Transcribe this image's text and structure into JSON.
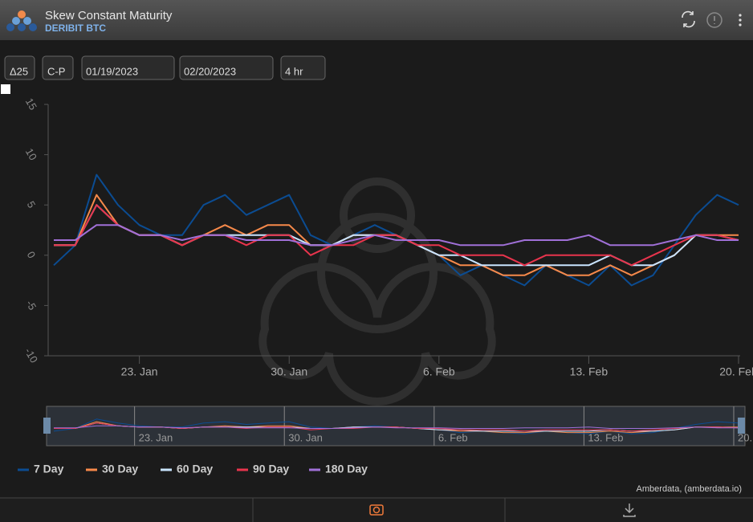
{
  "header": {
    "title": "Skew Constant Maturity",
    "exchange": "DERIBIT",
    "asset": "BTC"
  },
  "controls": {
    "delta": "Δ25",
    "mode": "C-P",
    "start": "01/19/2023",
    "end": "02/20/2023",
    "interval": "4 hr"
  },
  "credit": "Amberdata, (amberdata.io)",
  "chart_data": {
    "type": "line",
    "x": [
      "01/19/2023",
      "01/20/2023",
      "01/21/2023",
      "01/22/2023",
      "01/23/2023",
      "01/24/2023",
      "01/25/2023",
      "01/26/2023",
      "01/27/2023",
      "01/28/2023",
      "01/29/2023",
      "01/30/2023",
      "01/31/2023",
      "02/01/2023",
      "02/02/2023",
      "02/03/2023",
      "02/04/2023",
      "02/05/2023",
      "02/06/2023",
      "02/07/2023",
      "02/08/2023",
      "02/09/2023",
      "02/10/2023",
      "02/11/2023",
      "02/12/2023",
      "02/13/2023",
      "02/14/2023",
      "02/15/2023",
      "02/16/2023",
      "02/17/2023",
      "02/18/2023",
      "02/19/2023",
      "02/20/2023"
    ],
    "series": [
      {
        "name": "7 Day",
        "color": "#0b4c92",
        "values": [
          -1,
          1,
          8,
          5,
          3,
          2,
          2,
          5,
          6,
          4,
          5,
          6,
          2,
          1,
          2,
          3,
          2,
          1,
          0,
          -2,
          -1,
          -2,
          -3,
          -1,
          -2,
          -3,
          -1,
          -3,
          -2,
          1,
          4,
          6,
          5
        ]
      },
      {
        "name": "30 Day",
        "color": "#f7894a",
        "values": [
          1,
          1,
          6,
          3,
          2,
          2,
          1,
          2,
          3,
          2,
          3,
          3,
          1,
          1,
          2,
          2,
          2,
          1,
          0,
          -1,
          -1,
          -2,
          -2,
          -1,
          -2,
          -2,
          -1,
          -2,
          -1,
          0,
          2,
          2,
          2
        ]
      },
      {
        "name": "60 Day",
        "color": "#c9e4ff",
        "values": [
          1,
          1,
          5,
          3,
          2,
          2,
          1,
          2,
          2,
          2,
          2,
          2,
          1,
          1,
          2,
          2,
          2,
          1,
          0,
          0,
          -1,
          -1,
          -1,
          -1,
          -1,
          -1,
          0,
          -1,
          -1,
          0,
          2,
          2,
          1.5
        ]
      },
      {
        "name": "90 Day",
        "color": "#e8344d",
        "values": [
          1,
          1,
          5,
          3,
          2,
          2,
          1,
          2,
          2,
          1,
          2,
          2,
          0,
          1,
          1,
          2,
          2,
          1,
          1,
          0,
          0,
          0,
          -1,
          0,
          0,
          0,
          0,
          -1,
          0,
          1,
          2,
          2,
          1.5
        ]
      },
      {
        "name": "180 Day",
        "color": "#a070d8",
        "values": [
          1.5,
          1.5,
          3,
          3,
          2,
          2,
          1.5,
          2,
          2,
          1.5,
          1.5,
          1.5,
          1,
          1,
          1.5,
          2,
          1.5,
          1.5,
          1.5,
          1,
          1,
          1,
          1.5,
          1.5,
          1.5,
          2,
          1,
          1,
          1,
          1.5,
          2,
          1.5,
          1.5
        ]
      }
    ],
    "xlim": [
      "01/19/2023",
      "02/20/2023"
    ],
    "xticks": [
      {
        "value": "01/23/2023",
        "label": "23. Jan"
      },
      {
        "value": "01/30/2023",
        "label": "30. Jan"
      },
      {
        "value": "02/06/2023",
        "label": "6. Feb"
      },
      {
        "value": "02/13/2023",
        "label": "13. Feb"
      },
      {
        "value": "02/20/2023",
        "label": "20. Feb"
      }
    ],
    "ylim": [
      -10,
      15
    ],
    "yticks": [
      -10,
      -5,
      0,
      5,
      10,
      15
    ],
    "grid": false,
    "legend": "bottom"
  }
}
